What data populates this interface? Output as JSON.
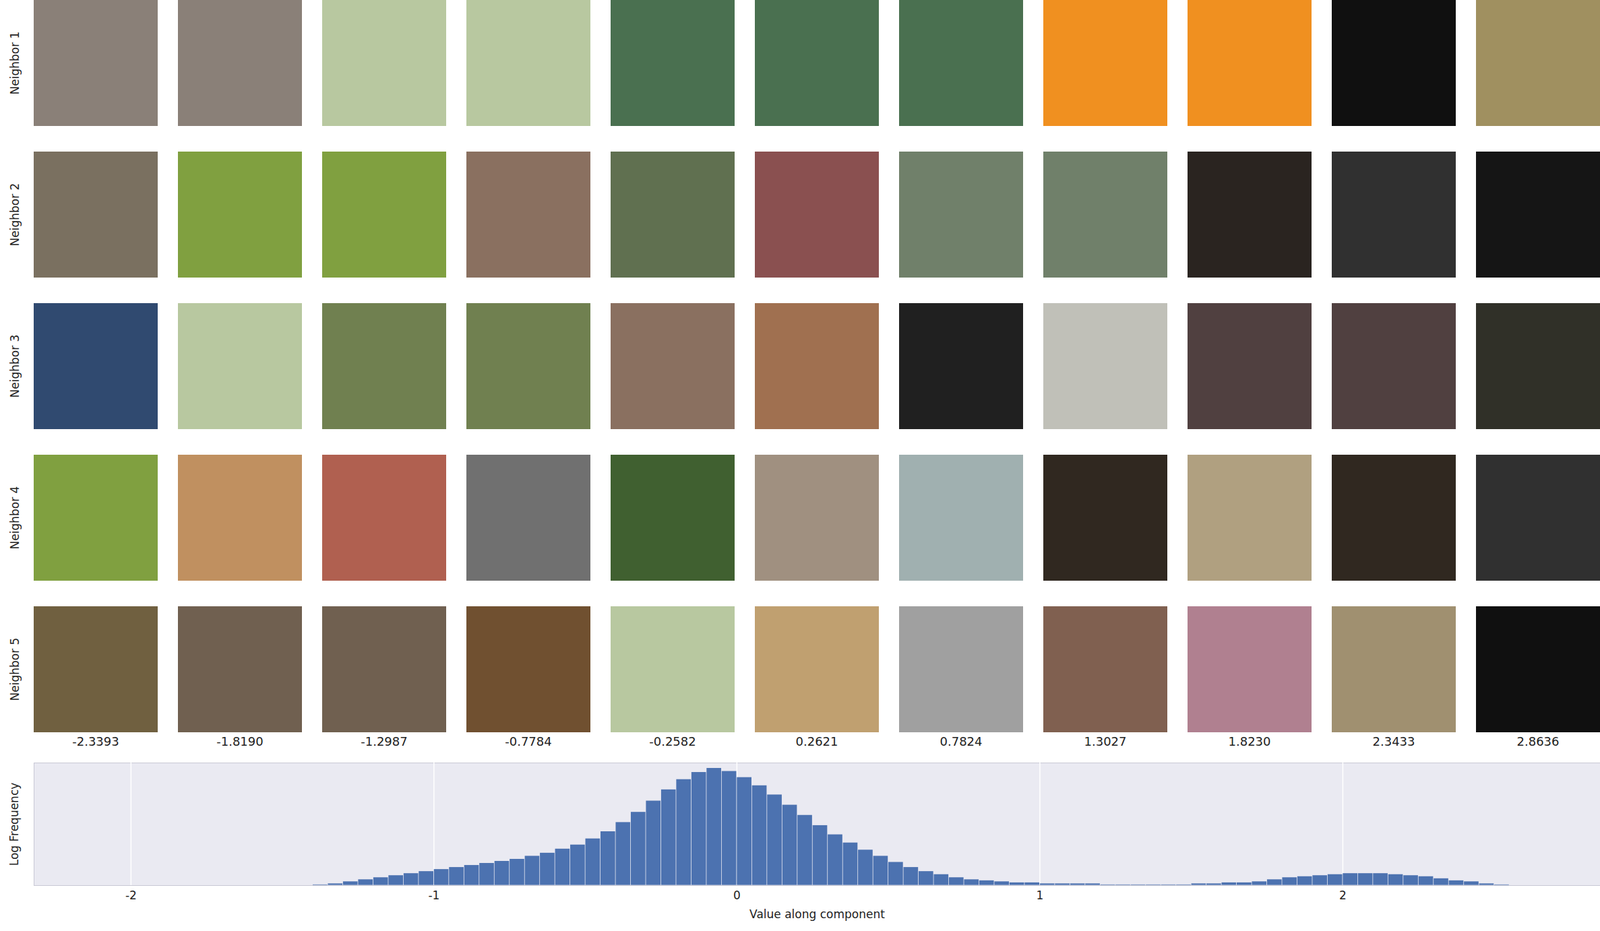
{
  "chart_data": [
    {
      "type": "image_grid",
      "row_labels": [
        "Neighbor 1",
        "Neighbor 2",
        "Neighbor 3",
        "Neighbor 4",
        "Neighbor 5"
      ],
      "column_values": [
        -2.3393,
        {
          "value": -1.819,
          "label": "-1.8190"
        },
        -1.2987,
        -0.7784,
        -0.2582,
        0.2621,
        0.7824,
        1.3027,
        {
          "value": 1.823,
          "label": "1.8230"
        },
        2.3433,
        2.8636
      ],
      "colors": [
        [
          "#8a8078",
          "#8a8078",
          "#b8c8a0",
          "#b8c8a0",
          "#4a7050",
          "#4a7050",
          "#4a7050",
          "#f09020",
          "#f09020",
          "#101010",
          "#a09060"
        ],
        [
          "#7a7060",
          "#80a040",
          "#80a040",
          "#8a7060",
          "#607050",
          "#8a5050",
          "#70806a",
          "#70806a",
          "#2a2420",
          "#303030",
          "#151515"
        ],
        [
          "#304a70",
          "#b8c8a0",
          "#708050",
          "#708050",
          "#8a7060",
          "#a07050",
          "#202020",
          "#c0c0b8",
          "#504040",
          "#504040",
          "#303028"
        ],
        [
          "#80a040",
          "#c09060",
          "#b06050",
          "#707070",
          "#406030",
          "#a09080",
          "#a0b0b0",
          "#302820",
          "#b0a080",
          "#302820",
          "#303030"
        ],
        [
          "#706040",
          "#706050",
          "#706050",
          "#705030",
          "#b8c8a0",
          "#c0a070",
          "#a0a0a0",
          "#806050",
          "#b08090",
          "#a09070",
          "#101010"
        ]
      ]
    },
    {
      "type": "histogram",
      "xlabel": "Value along component",
      "ylabel": "Log Frequency",
      "bins": [
        -1.4,
        -1.35,
        -1.3,
        -1.25,
        -1.2,
        -1.15,
        -1.1,
        -1.05,
        -1,
        -0.95,
        -0.9,
        -0.85,
        -0.8,
        -0.75,
        -0.7,
        -0.65,
        -0.6,
        -0.55,
        -0.5,
        -0.45,
        -0.4,
        -0.35,
        -0.3,
        -0.25,
        -0.2,
        -0.15,
        -0.1,
        -0.05,
        0,
        0.05,
        0.1,
        0.15,
        0.2,
        0.25,
        0.3,
        0.35,
        0.4,
        0.45,
        0.5,
        0.55,
        0.6,
        0.65,
        0.7,
        0.75,
        0.8,
        0.85,
        0.9,
        0.95,
        1,
        1.05,
        1.1,
        1.15,
        1.2,
        1.25,
        1.3,
        1.35,
        1.4,
        1.45,
        1.5,
        1.55,
        1.6,
        1.65,
        1.7,
        1.75,
        1.8,
        1.85,
        1.9,
        1.95,
        2,
        2.05,
        2.1,
        2.15,
        2.2,
        2.25,
        2.3,
        2.35,
        2.4,
        2.45,
        2.5,
        2.55
      ],
      "counts": [
        0.05,
        0.1,
        0.2,
        0.3,
        0.4,
        0.5,
        0.6,
        0.7,
        0.8,
        0.9,
        1.0,
        1.1,
        1.2,
        1.3,
        1.45,
        1.6,
        1.8,
        2.0,
        2.3,
        2.65,
        3.1,
        3.6,
        4.15,
        4.7,
        5.2,
        5.55,
        5.75,
        5.6,
        5.3,
        4.9,
        4.45,
        3.95,
        3.45,
        2.95,
        2.5,
        2.1,
        1.75,
        1.45,
        1.15,
        0.9,
        0.7,
        0.55,
        0.4,
        0.3,
        0.25,
        0.2,
        0.15,
        0.15,
        0.1,
        0.1,
        0.1,
        0.1,
        0.05,
        0.05,
        0.05,
        0.05,
        0.05,
        0.05,
        0.1,
        0.1,
        0.15,
        0.15,
        0.2,
        0.3,
        0.4,
        0.45,
        0.5,
        0.55,
        0.6,
        0.6,
        0.6,
        0.55,
        0.5,
        0.45,
        0.35,
        0.25,
        0.2,
        0.1,
        0.05
      ],
      "color": "#4c72b0",
      "xlim": [
        -2.32,
        2.85
      ],
      "xticks": [
        -2,
        -1,
        0,
        1,
        2
      ],
      "ylim": [
        0,
        6
      ],
      "grid": true,
      "tick_labels": "x"
    }
  ]
}
